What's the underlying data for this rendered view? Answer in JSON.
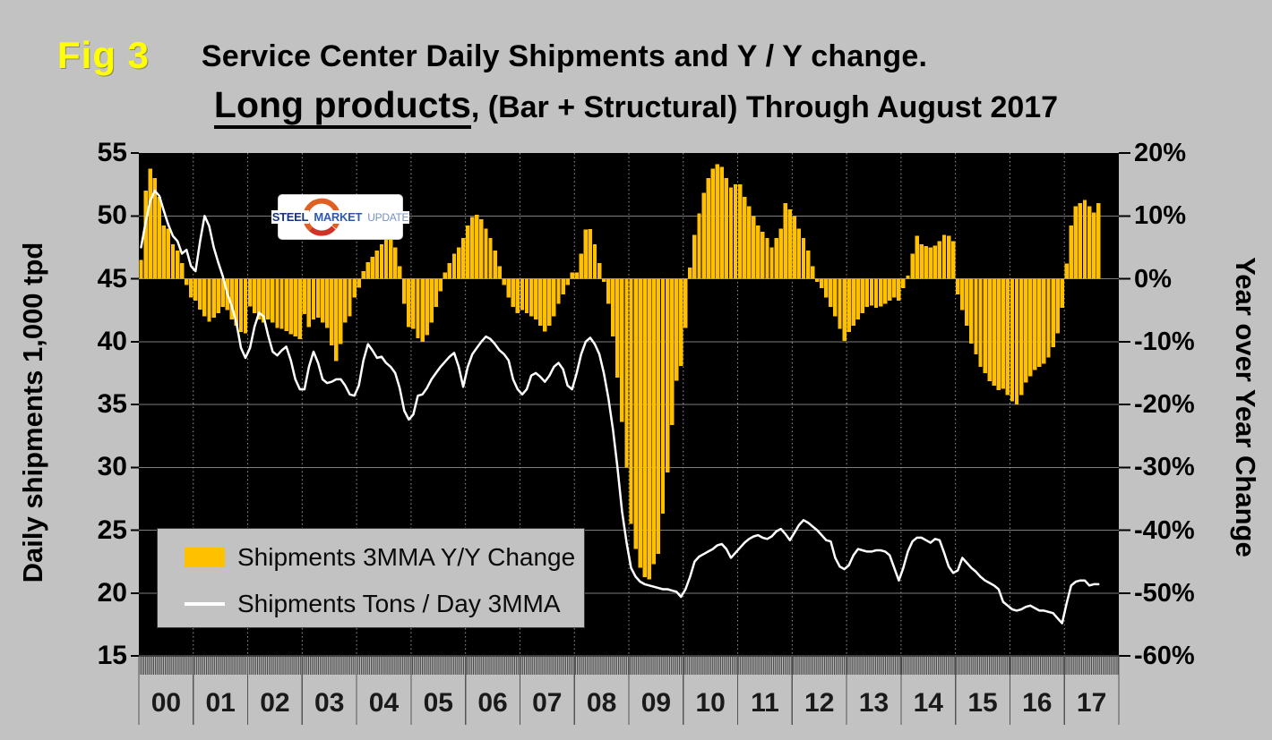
{
  "figure": {
    "fig_label": "Fig 3",
    "title_line1": "Service Center Daily Shipments and Y / Y change.",
    "title_line2_emphasis": "Long products",
    "title_line2_rest": ", (Bar + Structural) Through August 2017"
  },
  "logo": {
    "steel": "STEEL",
    "market": "MARKET",
    "update": "UPDATE"
  },
  "axes": {
    "left_title": "Daily shipments 1,000 tpd",
    "right_title": "Year over Year Change",
    "left_ticks": [
      "55",
      "50",
      "45",
      "40",
      "35",
      "30",
      "25",
      "20",
      "15"
    ],
    "right_ticks": [
      "20%",
      "10%",
      "0%",
      "-10%",
      "-20%",
      "-30%",
      "-40%",
      "-50%",
      "-60%"
    ],
    "x_labels": [
      "00",
      "01",
      "02",
      "03",
      "04",
      "05",
      "06",
      "07",
      "08",
      "09",
      "10",
      "11",
      "12",
      "13",
      "14",
      "15",
      "16",
      "17"
    ]
  },
  "legend": {
    "items": [
      {
        "swatch": "gold-bar",
        "label": "Shipments 3MMA Y/Y Change"
      },
      {
        "swatch": "white-line",
        "label": "Shipments Tons / Day 3MMA"
      }
    ]
  },
  "colors": {
    "background": "#C2C2C2",
    "plot_background": "#000000",
    "bar": "#FFC000",
    "line": "#FFFFFF",
    "fig_label": "#FFFF00",
    "gridline": "#7D7D7D"
  },
  "chart_data": {
    "type": "combo-bar-line",
    "title": "Service Center Daily Shipments and Y / Y change. Long products, (Bar + Structural) Through August 2017",
    "x_unit": "month",
    "start": "2000-01",
    "end": "2017-08",
    "categories_years": [
      "00",
      "01",
      "02",
      "03",
      "04",
      "05",
      "06",
      "07",
      "08",
      "09",
      "10",
      "11",
      "12",
      "13",
      "14",
      "15",
      "16",
      "17"
    ],
    "left_axis": {
      "label": "Daily shipments 1,000 tpd",
      "range": [
        15,
        55
      ],
      "tick_step": 5
    },
    "right_axis": {
      "label": "Year over Year Change",
      "range_pct": [
        -60,
        20
      ],
      "tick_step_pct": 10
    },
    "grid": {
      "horizontal": "solid",
      "vertical_year_lines": "dotted"
    },
    "legend_position": "lower-left",
    "series": [
      {
        "name": "Shipments 3MMA Y/Y Change",
        "type": "bar",
        "axis": "right",
        "unit": "%",
        "color": "#FFC000",
        "values": [
          3,
          14,
          17.5,
          16,
          13,
          8.5,
          8,
          5.5,
          4.5,
          2.5,
          -1,
          -3,
          -3.5,
          -4.9,
          -6,
          -6.8,
          -6.2,
          -5.5,
          -4.5,
          -5,
          -6.5,
          -7.5,
          -8.5,
          -8.7,
          -4.4,
          -5.5,
          -6.5,
          -7,
          -6.5,
          -7,
          -7.8,
          -8,
          -8.3,
          -8.8,
          -9.2,
          -9.6,
          -5.6,
          -7.7,
          -6.5,
          -6.2,
          -7,
          -7.8,
          -10.6,
          -13.1,
          -10.4,
          -7,
          -6,
          -3,
          -1.4,
          1.2,
          2.6,
          3.5,
          4.5,
          5.5,
          6.4,
          6.2,
          5,
          2,
          -4,
          -7.7,
          -8,
          -9.5,
          -10,
          -9,
          -7,
          -4.5,
          -2,
          1,
          2.5,
          4,
          5,
          6.5,
          8.5,
          9.8,
          10.2,
          9.5,
          8,
          6.5,
          4.5,
          2,
          -1,
          -3,
          -4.5,
          -5.5,
          -5,
          -5.5,
          -6,
          -6.5,
          -7.5,
          -8.4,
          -7.5,
          -6,
          -4,
          -2.5,
          -1,
          1,
          1,
          4,
          7.8,
          7.9,
          5.5,
          2.5,
          -0.5,
          -4,
          -9.2,
          -15.7,
          -22.8,
          -30,
          -39,
          -43,
          -46,
          -47.5,
          -47.8,
          -45.4,
          -43.8,
          -37.4,
          -30.8,
          -23.3,
          -16.2,
          -13.9,
          -7.8,
          1.8,
          7,
          10.4,
          13.7,
          16,
          17.5,
          18.2,
          17.8,
          16,
          14.5,
          15,
          15,
          13,
          11.5,
          10,
          8.5,
          7.5,
          6.5,
          5,
          6.5,
          8,
          12,
          11,
          10,
          8,
          6.5,
          4.5,
          2,
          -0.5,
          -1.5,
          -3,
          -4.5,
          -6,
          -8,
          -9.9,
          -8.5,
          -7.5,
          -6.5,
          -5.5,
          -4.5,
          -4.3,
          -4.6,
          -4.4,
          -4,
          -3.5,
          -3,
          -3.5,
          -1.5,
          0.5,
          4,
          6.8,
          5.5,
          5.2,
          5,
          5.3,
          6,
          7,
          6.8,
          6,
          -2.5,
          -5,
          -7.5,
          -10.3,
          -12,
          -14,
          -15,
          -16.3,
          -17,
          -17.7,
          -17.5,
          -18.5,
          -19.5,
          -20,
          -18.5,
          -16.5,
          -15.5,
          -14.5,
          -14,
          -13.5,
          -12.5,
          -10.9,
          -8.7,
          -4.6,
          2.4,
          8.5,
          11.5,
          12,
          12.5,
          11.5,
          10.5,
          12
        ]
      },
      {
        "name": "Shipments Tons / Day 3MMA",
        "type": "line",
        "axis": "left",
        "unit": "1,000 tons per day",
        "color": "#FFFFFF",
        "values": [
          47.5,
          49.5,
          51.2,
          52.0,
          51.6,
          50.4,
          49.3,
          48.4,
          48.0,
          47.0,
          47.3,
          46.0,
          45.6,
          48.0,
          50.0,
          49.2,
          47.5,
          46.3,
          45.2,
          43.8,
          42.8,
          41.5,
          39.5,
          38.7,
          39.5,
          41.2,
          42.3,
          42.0,
          40.5,
          39.2,
          38.9,
          39.3,
          39.6,
          38.5,
          37.0,
          36.2,
          36.2,
          38.0,
          39.2,
          38.3,
          37.0,
          36.7,
          36.8,
          37.0,
          37.0,
          36.5,
          35.8,
          35.7,
          36.5,
          38.5,
          39.8,
          39.3,
          38.7,
          38.8,
          38.3,
          38.0,
          37.5,
          36.3,
          34.5,
          33.8,
          34.2,
          35.7,
          35.8,
          36.3,
          37.0,
          37.5,
          38.0,
          38.4,
          38.8,
          39.1,
          38.0,
          36.4,
          38.0,
          39.0,
          39.5,
          40.0,
          40.4,
          40.2,
          39.8,
          39.3,
          39.0,
          38.5,
          37.0,
          36.2,
          35.8,
          36.2,
          37.3,
          37.5,
          37.2,
          36.8,
          37.3,
          38.0,
          38.3,
          37.8,
          36.5,
          36.2,
          37.5,
          39.0,
          40.0,
          40.3,
          39.8,
          39.0,
          37.5,
          35.5,
          33.0,
          30.0,
          26.5,
          24.0,
          22.0,
          21.3,
          20.9,
          20.7,
          20.6,
          20.5,
          20.4,
          20.3,
          20.3,
          20.2,
          20.1,
          19.7,
          20.3,
          21.3,
          22.5,
          22.9,
          23.1,
          23.3,
          23.5,
          23.8,
          23.9,
          23.5,
          22.8,
          23.2,
          23.6,
          24.0,
          24.3,
          24.5,
          24.6,
          24.4,
          24.3,
          24.5,
          24.9,
          25.1,
          24.7,
          24.2,
          24.8,
          25.4,
          25.8,
          25.6,
          25.3,
          25.0,
          24.6,
          24.2,
          24.1,
          22.8,
          22.1,
          21.9,
          22.2,
          23.0,
          23.5,
          23.4,
          23.3,
          23.3,
          23.4,
          23.4,
          23.3,
          23.0,
          22.0,
          21.0,
          22.0,
          23.3,
          24.1,
          24.4,
          24.4,
          24.2,
          24.0,
          24.3,
          24.2,
          23.2,
          22.1,
          21.6,
          21.8,
          22.8,
          22.4,
          22.0,
          21.7,
          21.3,
          21.0,
          20.8,
          20.6,
          20.3,
          19.3,
          19.0,
          18.7,
          18.6,
          18.7,
          18.9,
          19.0,
          18.8,
          18.6,
          18.6,
          18.5,
          18.4,
          18.0,
          17.6,
          19.2,
          20.6,
          20.9,
          21.0,
          21.0,
          20.6,
          20.7,
          20.7
        ]
      }
    ]
  }
}
